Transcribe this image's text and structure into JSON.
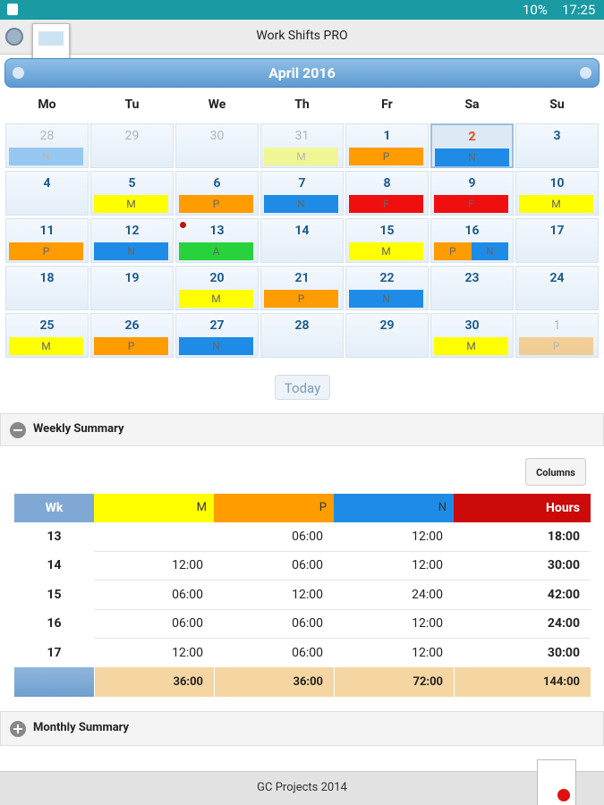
{
  "status_bar": {
    "battery": "10%",
    "time": "17:25"
  },
  "app_title": "Work Shifts PRO",
  "calendar": {
    "month": "April 2016",
    "weekdays": [
      "Mo",
      "Tu",
      "We",
      "Th",
      "Fr",
      "Sa",
      "Su"
    ],
    "shift_colors": {
      "M": "#ffff00",
      "P": "#ff9c00",
      "N": "#1e8ce6",
      "F": "#f00f0f",
      "A": "#27d23c"
    },
    "weeks": [
      [
        {
          "day": "28",
          "shifts": [
            "N"
          ],
          "outside": true
        },
        {
          "day": "29",
          "outside": true
        },
        {
          "day": "30",
          "outside": true
        },
        {
          "day": "31",
          "shifts": [
            "M"
          ],
          "outside": true
        },
        {
          "day": "1",
          "shifts": [
            "P"
          ]
        },
        {
          "day": "2",
          "shifts": [
            "N"
          ],
          "selected": true
        },
        {
          "day": "3"
        }
      ],
      [
        {
          "day": "4"
        },
        {
          "day": "5",
          "shifts": [
            "M"
          ]
        },
        {
          "day": "6",
          "shifts": [
            "P"
          ]
        },
        {
          "day": "7",
          "shifts": [
            "N"
          ]
        },
        {
          "day": "8",
          "shifts": [
            "F"
          ]
        },
        {
          "day": "9",
          "shifts": [
            "F"
          ]
        },
        {
          "day": "10",
          "shifts": [
            "M"
          ]
        }
      ],
      [
        {
          "day": "11",
          "shifts": [
            "P"
          ]
        },
        {
          "day": "12",
          "shifts": [
            "N"
          ]
        },
        {
          "day": "13",
          "shifts": [
            "A"
          ],
          "marker": true
        },
        {
          "day": "14"
        },
        {
          "day": "15",
          "shifts": [
            "M"
          ]
        },
        {
          "day": "16",
          "shifts": [
            "P",
            "N"
          ]
        },
        {
          "day": "17"
        }
      ],
      [
        {
          "day": "18"
        },
        {
          "day": "19"
        },
        {
          "day": "20",
          "shifts": [
            "M"
          ]
        },
        {
          "day": "21",
          "shifts": [
            "P"
          ]
        },
        {
          "day": "22",
          "shifts": [
            "N"
          ]
        },
        {
          "day": "23"
        },
        {
          "day": "24"
        }
      ],
      [
        {
          "day": "25",
          "shifts": [
            "M"
          ]
        },
        {
          "day": "26",
          "shifts": [
            "P"
          ]
        },
        {
          "day": "27",
          "shifts": [
            "N"
          ]
        },
        {
          "day": "28"
        },
        {
          "day": "29"
        },
        {
          "day": "30",
          "shifts": [
            "M"
          ]
        },
        {
          "day": "1",
          "shifts": [
            "P"
          ],
          "outside": true
        }
      ]
    ],
    "today_button": "Today"
  },
  "weekly_summary": {
    "title": "Weekly Summary",
    "columns_button": "Columns",
    "headers": [
      "Wk",
      "M",
      "P",
      "N",
      "Hours"
    ],
    "header_colors": [
      "#7fa9d4",
      "#ffff00",
      "#ff9c00",
      "#1e8ce6",
      "#cc0a0a"
    ],
    "rows": [
      [
        "13",
        null,
        "06:00",
        "12:00",
        "18:00"
      ],
      [
        "14",
        "12:00",
        "06:00",
        "12:00",
        "30:00"
      ],
      [
        "15",
        "06:00",
        "12:00",
        "24:00",
        "42:00"
      ],
      [
        "16",
        "06:00",
        "06:00",
        "12:00",
        "24:00"
      ],
      [
        "17",
        "12:00",
        "06:00",
        "12:00",
        "30:00"
      ]
    ],
    "totals": [
      "36:00",
      "36:00",
      "72:00",
      "144:00"
    ]
  },
  "monthly_summary": {
    "title": "Monthly Summary"
  },
  "footer": "GC Projects 2014"
}
